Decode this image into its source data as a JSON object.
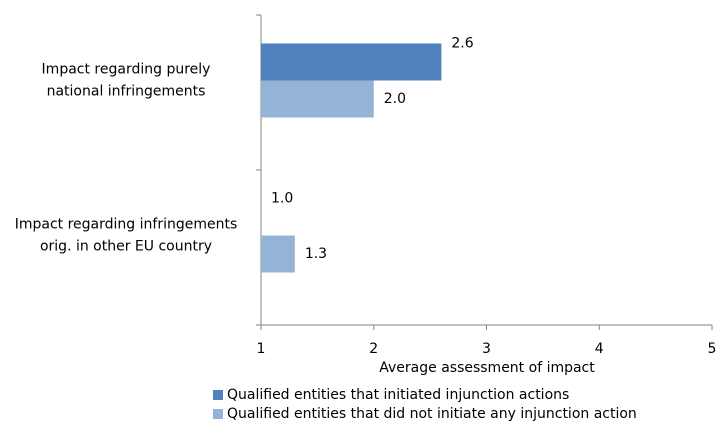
{
  "chart_data": {
    "type": "bar",
    "orientation": "horizontal",
    "categories": [
      "Impact regarding purely\nnational infringements",
      "Impact regarding infringements\norig. in other EU country"
    ],
    "series": [
      {
        "name": "Qualified entities that initiated injunction actions",
        "color": "#4f81bd",
        "values": [
          2.6,
          1.0
        ],
        "value_labels": [
          "2.6",
          "1.0"
        ]
      },
      {
        "name": "Qualified entities that did not initiate any injunction action",
        "color": "#95b3d7",
        "values": [
          2.0,
          1.3
        ],
        "value_labels": [
          "2.0",
          "1.3"
        ]
      }
    ],
    "xlabel": "Average assessment of impact",
    "xlim": [
      1,
      5
    ],
    "xticks": [
      1,
      2,
      3,
      4,
      5
    ],
    "legend": "bottom"
  }
}
